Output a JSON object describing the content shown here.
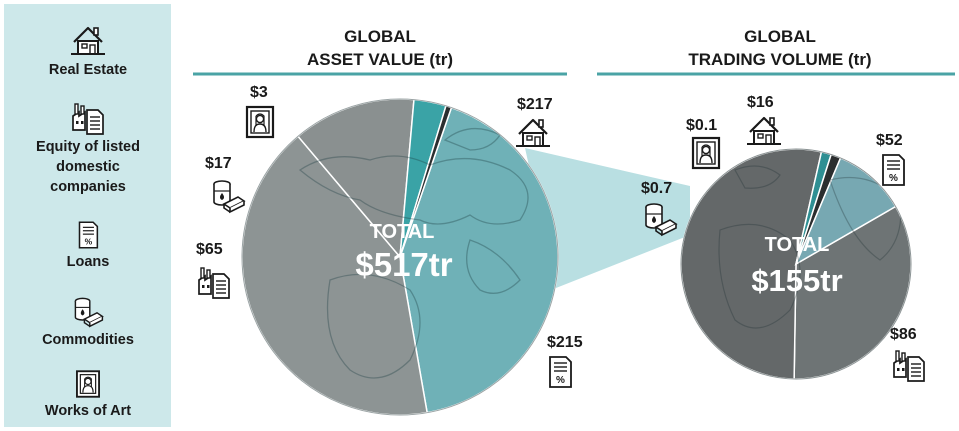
{
  "legend": [
    {
      "label_lines": [
        "Real Estate"
      ],
      "icon": "house-icon"
    },
    {
      "label_lines": [
        "Equity of listed",
        "domestic",
        "companies"
      ],
      "icon": "factory-document-icon"
    },
    {
      "label_lines": [
        "Loans"
      ],
      "icon": "percent-document-icon"
    },
    {
      "label_lines": [
        "Commodities"
      ],
      "icon": "oil-barrel-gold-icon"
    },
    {
      "label_lines": [
        "Works of Art"
      ],
      "icon": "framed-portrait-icon"
    }
  ],
  "colors": {
    "legend_bg": "#cde8ea",
    "rule": "#4aa3a5",
    "connector": "#b9dfe2",
    "real_estate_left": "#6fb1b7",
    "equity_left": "#8a9090",
    "loans_left": "#8d9494",
    "commodities_left": "#3aa3a6",
    "art": "#2b2e2f",
    "real_estate_right": "#77a8b2",
    "equity_right": "#646869",
    "loans_right": "#6e7475",
    "commodities_right": "#2f8f93"
  },
  "chart_data": [
    {
      "type": "pie",
      "title_lines": [
        "GLOBAL",
        "ASSET VALUE (tr)"
      ],
      "total_label": "TOTAL",
      "total_value": "$517tr",
      "slices": [
        {
          "name": "Real Estate",
          "value": 217,
          "label": "$217",
          "icon": "house-icon"
        },
        {
          "name": "Loans",
          "value": 215,
          "label": "$215",
          "icon": "percent-document-icon"
        },
        {
          "name": "Equity of listed domestic companies",
          "value": 65,
          "label": "$65",
          "icon": "factory-document-icon"
        },
        {
          "name": "Commodities",
          "value": 17,
          "label": "$17",
          "icon": "oil-barrel-gold-icon"
        },
        {
          "name": "Works of Art",
          "value": 3,
          "label": "$3",
          "icon": "framed-portrait-icon"
        }
      ]
    },
    {
      "type": "pie",
      "title_lines": [
        "GLOBAL",
        "TRADING VOLUME (tr)"
      ],
      "total_label": "TOTAL",
      "total_value": "$155tr",
      "slices": [
        {
          "name": "Loans",
          "value": 52,
          "label": "$52",
          "icon": "percent-document-icon"
        },
        {
          "name": "Equity of listed domestic companies",
          "value": 86,
          "label": "$86",
          "icon": "factory-document-icon"
        },
        {
          "name": "Commodities",
          "value": 0.7,
          "label": "$0.7",
          "icon": "oil-barrel-gold-icon"
        },
        {
          "name": "Works of Art",
          "value": 0.1,
          "label": "$0.1",
          "icon": "framed-portrait-icon"
        },
        {
          "name": "Real Estate",
          "value": 16,
          "label": "$16",
          "icon": "house-icon"
        }
      ]
    }
  ]
}
